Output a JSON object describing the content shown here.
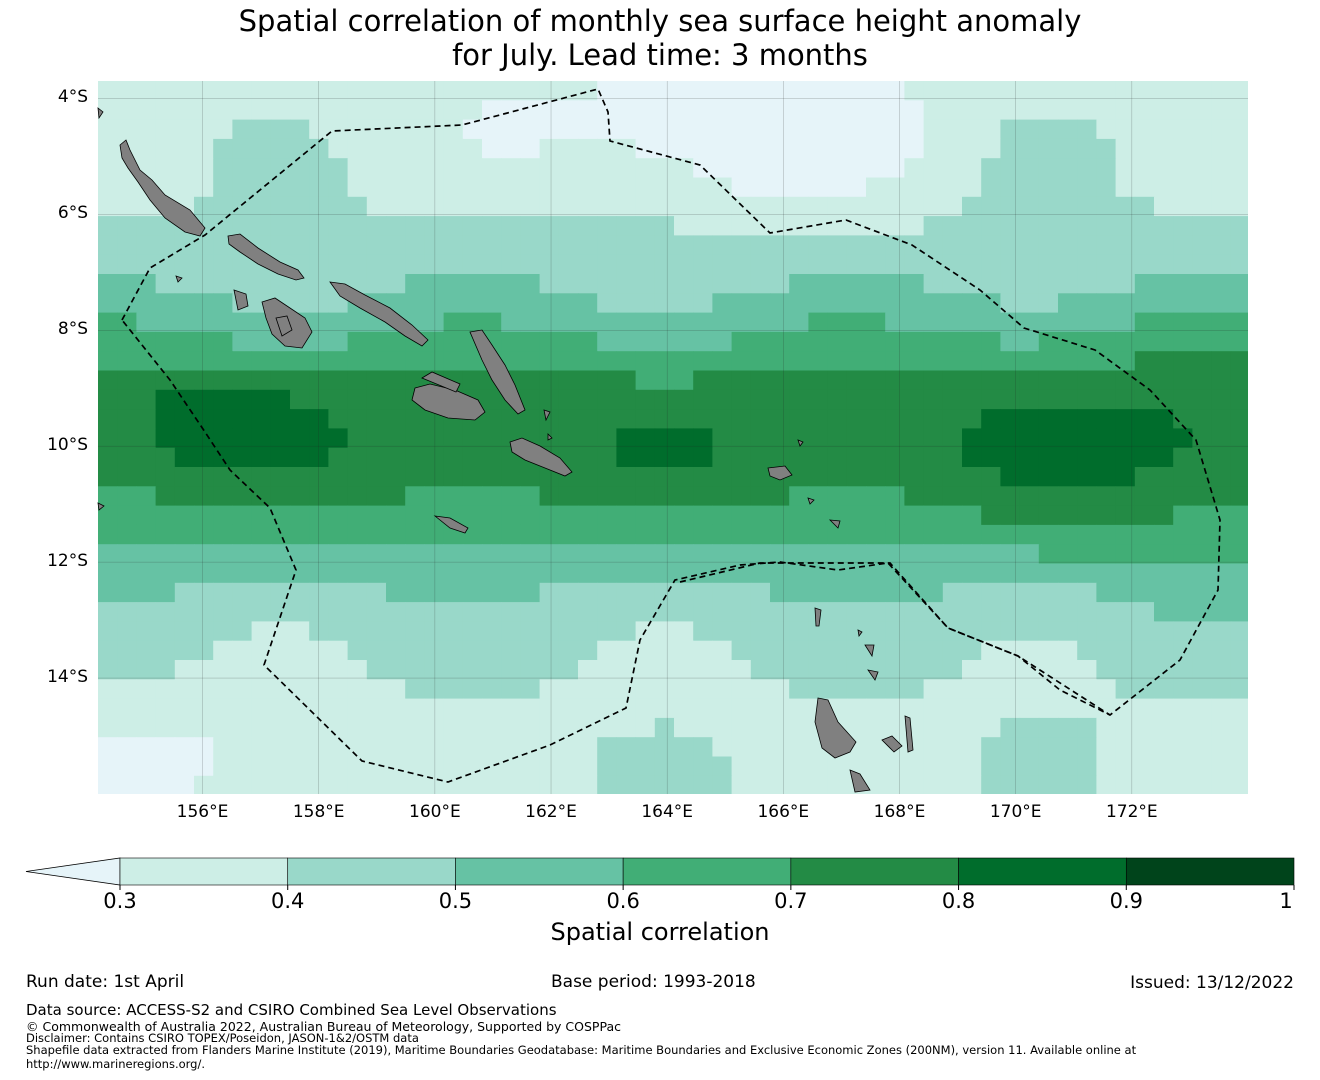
{
  "title": {
    "line1": "Spatial correlation of monthly sea surface height anomaly",
    "line2": "for July. Lead time: 3 months"
  },
  "map": {
    "lon_range": [
      154.2,
      174.0
    ],
    "lat_range": [
      -16.0,
      -3.7
    ],
    "lat_labels": [
      "4°S",
      "6°S",
      "8°S",
      "10°S",
      "12°S",
      "14°S"
    ],
    "lat_values": [
      -4,
      -6,
      -8,
      -10,
      -12,
      -14
    ],
    "lon_labels": [
      "156°E",
      "158°E",
      "160°E",
      "162°E",
      "164°E",
      "166°E",
      "168°E",
      "170°E",
      "172°E"
    ],
    "lon_values": [
      156,
      158,
      160,
      162,
      164,
      166,
      168,
      170,
      172
    ],
    "land_color": "#808080",
    "boundary_style": "dashed"
  },
  "colorbar": {
    "label": "Spatial correlation",
    "ticks": [
      "0.3",
      "0.4",
      "0.5",
      "0.6",
      "0.7",
      "0.8",
      "0.9",
      "1"
    ],
    "colors": [
      "#e6f4f9",
      "#cdeee6",
      "#99d8c9",
      "#66c2a4",
      "#41ae76",
      "#238b45",
      "#006d2c",
      "#00441b"
    ],
    "extend": "min"
  },
  "footer": {
    "run_date": "Run date: 1st April",
    "base_period": "Base period: 1993-2018",
    "issued": "Issued: 13/12/2022",
    "data_source": "Data source: ACCESS-S2 and CSIRO Combined Sea Level Observations",
    "copyright": "© Commonwealth of Australia 2022, Australian Bureau of Meteorology, Supported by COSPPac",
    "disclaimer": "Disclaimer: Contains CSIRO TOPEX/Poseidon, JASON-1&2/OSTM data",
    "shapefile": "Shapefile data extracted from Flanders Marine Institute (2019), Maritime Boundaries Geodatabase: Maritime Boundaries and Exclusive Economic Zones (200NM), version 11. Available online at",
    "url": "http://www.marineregions.org/."
  }
}
